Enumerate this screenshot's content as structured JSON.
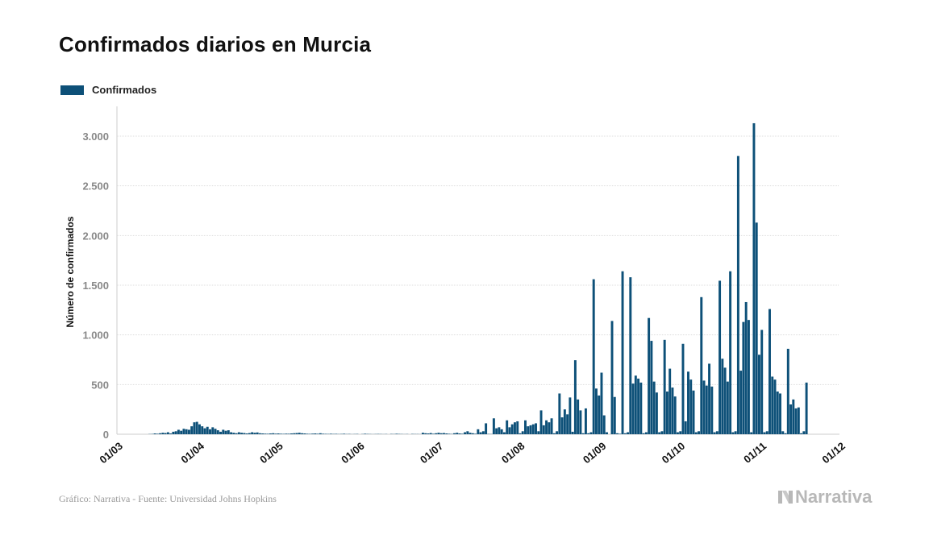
{
  "title": "Confirmados diarios en Murcia",
  "source_note": "Gráfico: Narrativa - Fuente: Universidad Johns Hopkins",
  "brand_name": "Narrativa",
  "brand_icon": "narrativa-logo-icon",
  "colors": {
    "bar": "#0d5078",
    "grid": "#dddddd",
    "axis_text": "#888888",
    "brand": "#b8b8b8"
  },
  "chart_data": {
    "type": "bar",
    "title": "Confirmados diarios en Murcia",
    "xlabel": "",
    "ylabel": "Número de confirmados",
    "ylim": [
      0,
      3300
    ],
    "yticks": [
      0,
      500,
      1000,
      1500,
      2000,
      2500,
      3000
    ],
    "ytick_labels": [
      "0",
      "500",
      "1.000",
      "1.500",
      "2.000",
      "2.500",
      "3.000"
    ],
    "x_range": [
      "2020-03-01",
      "2020-12-01"
    ],
    "xticks": [
      "2020-03-01",
      "2020-04-01",
      "2020-05-01",
      "2020-06-01",
      "2020-07-01",
      "2020-08-01",
      "2020-09-01",
      "2020-10-01",
      "2020-11-01",
      "2020-12-01"
    ],
    "xtick_labels": [
      "01/03",
      "01/04",
      "01/05",
      "01/06",
      "01/07",
      "01/08",
      "01/09",
      "01/10",
      "01/11",
      "01/12"
    ],
    "grid": true,
    "legend": "top-left",
    "series": [
      {
        "name": "Confirmados",
        "start_date": "2020-03-13",
        "values": [
          2,
          3,
          8,
          5,
          10,
          15,
          12,
          20,
          8,
          25,
          30,
          45,
          35,
          55,
          50,
          45,
          80,
          120,
          125,
          100,
          80,
          60,
          75,
          50,
          70,
          55,
          40,
          25,
          45,
          35,
          40,
          20,
          15,
          10,
          20,
          15,
          12,
          8,
          12,
          20,
          15,
          18,
          10,
          8,
          6,
          5,
          8,
          10,
          6,
          8,
          5,
          4,
          6,
          5,
          8,
          10,
          12,
          15,
          10,
          8,
          5,
          4,
          6,
          8,
          5,
          10,
          5,
          4,
          3,
          5,
          3,
          4,
          2,
          3,
          5,
          2,
          3,
          1,
          2,
          3,
          0,
          2,
          5,
          3,
          2,
          1,
          2,
          3,
          2,
          1,
          2,
          0,
          3,
          2,
          5,
          3,
          2,
          1,
          2,
          0,
          3,
          2,
          2,
          1,
          15,
          10,
          8,
          12,
          5,
          10,
          15,
          10,
          12,
          8,
          5,
          3,
          10,
          15,
          8,
          5,
          20,
          30,
          15,
          10,
          5,
          50,
          20,
          30,
          110,
          3,
          2,
          160,
          60,
          70,
          50,
          20,
          140,
          70,
          100,
          120,
          130,
          10,
          30,
          140,
          80,
          90,
          100,
          110,
          30,
          240,
          90,
          140,
          120,
          160,
          10,
          30,
          410,
          170,
          250,
          200,
          370,
          25,
          745,
          350,
          240,
          10,
          260,
          10,
          20,
          1560,
          460,
          390,
          620,
          190,
          20,
          0,
          1140,
          375,
          10,
          5,
          1640,
          10,
          20,
          1580,
          510,
          590,
          560,
          520,
          10,
          20,
          1170,
          940,
          530,
          420,
          20,
          30,
          950,
          430,
          660,
          470,
          380,
          20,
          30,
          910,
          130,
          630,
          550,
          440,
          20,
          30,
          1380,
          540,
          490,
          710,
          480,
          20,
          30,
          1545,
          760,
          670,
          530,
          1640,
          20,
          30,
          2800,
          640,
          1130,
          1330,
          1150,
          20,
          3130,
          2130,
          800,
          1050,
          20,
          30,
          1260,
          580,
          550,
          430,
          410,
          30,
          10,
          860,
          300,
          350,
          260,
          270,
          10,
          30,
          520
        ]
      }
    ]
  }
}
